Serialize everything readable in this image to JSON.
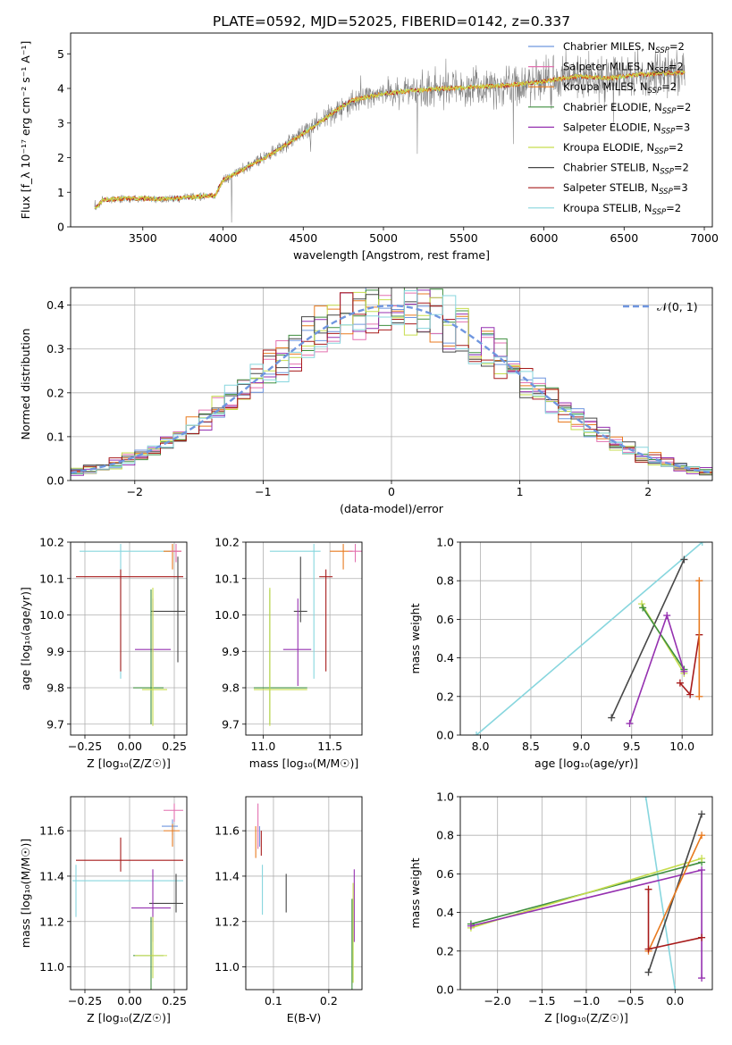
{
  "figure_title": "PLATE=0592, MJD=52025, FIBERID=0142, z=0.337",
  "colors": {
    "Chabrier MILES": "#6f96df",
    "Salpeter MILES": "#e371b0",
    "Kroupa MILES": "#e87a1f",
    "Chabrier ELODIE": "#3f8f3f",
    "Salpeter ELODIE": "#9531b0",
    "Kroupa ELODIE": "#c6dd4e",
    "Chabrier STELIB": "#474747",
    "Salpeter STELIB": "#a71b1b",
    "Kroupa STELIB": "#87d6de",
    "observed_spectrum": "#808080",
    "gaussian": "#6f96df"
  },
  "chart_data": [
    {
      "id": "spectrum",
      "type": "line",
      "xlabel": "wavelength [Angstrom, rest frame]",
      "ylabel": "Flux [f_λ 10⁻¹⁷ erg cm⁻² s⁻¹ A⁻¹]",
      "xlim": [
        3050,
        7050
      ],
      "ylim": [
        0,
        5.6
      ],
      "xticks": [
        3500,
        4000,
        4500,
        5000,
        5500,
        6000,
        6500,
        7000
      ],
      "yticks": [
        0,
        1,
        2,
        3,
        4,
        5
      ],
      "grid": false,
      "legend_position": "top-right",
      "legend": [
        {
          "model": "Chabrier MILES",
          "label": "Chabrier MILES, N",
          "sub": "SSP",
          "suffix": "=2"
        },
        {
          "model": "Salpeter MILES",
          "label": "Salpeter MILES, N",
          "sub": "SSP",
          "suffix": "=2"
        },
        {
          "model": "Kroupa MILES",
          "label": "Kroupa MILES, N",
          "sub": "SSP",
          "suffix": "=2"
        },
        {
          "model": "Chabrier ELODIE",
          "label": "Chabrier ELODIE, N",
          "sub": "SSP",
          "suffix": "=2"
        },
        {
          "model": "Salpeter ELODIE",
          "label": "Salpeter ELODIE, N",
          "sub": "SSP",
          "suffix": "=3"
        },
        {
          "model": "Kroupa ELODIE",
          "label": "Kroupa ELODIE, N",
          "sub": "SSP",
          "suffix": "=2"
        },
        {
          "model": "Chabrier STELIB",
          "label": "Chabrier STELIB, N",
          "sub": "SSP",
          "suffix": "=2"
        },
        {
          "model": "Salpeter STELIB",
          "label": "Salpeter STELIB, N",
          "sub": "SSP",
          "suffix": "=3"
        },
        {
          "model": "Kroupa STELIB",
          "label": "Kroupa STELIB, N",
          "sub": "SSP",
          "suffix": "=2"
        }
      ],
      "continuum": [
        [
          3210,
          0.55
        ],
        [
          3250,
          0.78
        ],
        [
          3400,
          0.82
        ],
        [
          3500,
          0.82
        ],
        [
          3600,
          0.8
        ],
        [
          3700,
          0.82
        ],
        [
          3800,
          0.85
        ],
        [
          3900,
          0.9
        ],
        [
          3950,
          0.9
        ],
        [
          4000,
          1.35
        ],
        [
          4100,
          1.6
        ],
        [
          4200,
          1.85
        ],
        [
          4300,
          2.1
        ],
        [
          4400,
          2.4
        ],
        [
          4500,
          2.7
        ],
        [
          4600,
          3.0
        ],
        [
          4700,
          3.35
        ],
        [
          4800,
          3.65
        ],
        [
          4900,
          3.75
        ],
        [
          5000,
          3.85
        ],
        [
          5200,
          3.95
        ],
        [
          5400,
          4.0
        ],
        [
          5600,
          4.05
        ],
        [
          5800,
          4.1
        ],
        [
          6000,
          4.2
        ],
        [
          6200,
          4.35
        ],
        [
          6400,
          4.3
        ],
        [
          6600,
          4.4
        ],
        [
          6800,
          4.45
        ],
        [
          6880,
          4.45
        ]
      ],
      "data_range": [
        3200,
        6880
      ]
    },
    {
      "id": "residuals",
      "type": "histogram",
      "xlabel": "(data-model)/error",
      "ylabel": "Normed distribution",
      "xlim": [
        -2.5,
        2.5
      ],
      "ylim": [
        0,
        0.44
      ],
      "xticks": [
        -2,
        -1,
        0,
        1,
        2
      ],
      "yticks": [
        0.0,
        0.1,
        0.2,
        0.3,
        0.4
      ],
      "grid": true,
      "legend_position": "top-right",
      "legend": [
        {
          "label": "𝒩(0, 1)",
          "style": "dashed"
        }
      ],
      "bins": 50,
      "gaussian": {
        "mean": 0,
        "sigma": 1
      }
    },
    {
      "id": "age-vs-Z",
      "type": "errorbar",
      "xlabel": "Z [log₁₀(Z/Z☉)]",
      "ylabel": "age  [log₁₀(age/yr)]",
      "xlim": [
        -0.33,
        0.32
      ],
      "ylim": [
        9.67,
        10.2
      ],
      "xticks": [
        -0.25,
        0.0,
        0.25
      ],
      "yticks": [
        9.7,
        9.8,
        9.9,
        10.0,
        10.1,
        10.2
      ],
      "grid": true,
      "points": [
        {
          "model": "Kroupa STELIB",
          "x": -0.05,
          "y": 10.175,
          "xerr": [
            0.23,
            0.32
          ],
          "yerr": [
            0.35,
            0.02
          ]
        },
        {
          "model": "Salpeter STELIB",
          "x": -0.05,
          "y": 10.105,
          "xerr": [
            0.25,
            0.35
          ],
          "yerr": [
            0.26,
            0.02
          ]
        },
        {
          "model": "Kroupa MILES",
          "x": 0.24,
          "y": 10.175,
          "xerr": [
            0.05,
            0.05
          ],
          "yerr": [
            0.05,
            0.02
          ]
        },
        {
          "model": "Salpeter MILES",
          "x": 0.26,
          "y": 10.175,
          "xerr": [
            0.03,
            0.03
          ],
          "yerr": [
            0.03,
            0.02
          ]
        },
        {
          "model": "Chabrier STELIB",
          "x": 0.27,
          "y": 10.01,
          "xerr": [
            0.15,
            0.04
          ],
          "yerr": [
            0.14,
            0.15
          ]
        },
        {
          "model": "Salpeter ELODIE",
          "x": 0.13,
          "y": 9.905,
          "xerr": [
            0.1,
            0.1
          ],
          "yerr": [
            0.1,
            0.14
          ]
        },
        {
          "model": "Chabrier ELODIE",
          "x": 0.12,
          "y": 9.8,
          "xerr": [
            0.1,
            0.07
          ],
          "yerr": [
            0.1,
            0.27
          ]
        },
        {
          "model": "Kroupa ELODIE",
          "x": 0.13,
          "y": 9.795,
          "xerr": [
            0.06,
            0.08
          ],
          "yerr": [
            0.1,
            0.28
          ]
        }
      ]
    },
    {
      "id": "age-vs-mass",
      "type": "errorbar",
      "xlabel": "mass [log₁₀(M/M☉)]",
      "ylabel": "",
      "xlim": [
        10.87,
        11.74
      ],
      "ylim": [
        9.67,
        10.2
      ],
      "xticks": [
        11.0,
        11.5
      ],
      "yticks": [
        9.7,
        9.8,
        9.9,
        10.0,
        10.1,
        10.2
      ],
      "grid": true,
      "points": [
        {
          "model": "Kroupa STELIB",
          "x": 11.38,
          "y": 10.175,
          "xerr": [
            0.33,
            0.05
          ],
          "yerr": [
            0.35,
            0.02
          ]
        },
        {
          "model": "Salpeter STELIB",
          "x": 11.47,
          "y": 10.105,
          "xerr": [
            0.05,
            0.05
          ],
          "yerr": [
            0.26,
            0.02
          ]
        },
        {
          "model": "Kroupa MILES",
          "x": 11.6,
          "y": 10.175,
          "xerr": [
            0.1,
            0.07
          ],
          "yerr": [
            0.05,
            0.02
          ]
        },
        {
          "model": "Salpeter MILES",
          "x": 11.69,
          "y": 10.175,
          "xerr": [
            0.05,
            0.05
          ],
          "yerr": [
            0.03,
            0.02
          ]
        },
        {
          "model": "Chabrier STELIB",
          "x": 11.28,
          "y": 10.01,
          "xerr": [
            0.05,
            0.05
          ],
          "yerr": [
            0.03,
            0.15
          ]
        },
        {
          "model": "Salpeter ELODIE",
          "x": 11.26,
          "y": 9.905,
          "xerr": [
            0.11,
            0.1
          ],
          "yerr": [
            0.1,
            0.14
          ]
        },
        {
          "model": "Chabrier ELODIE",
          "x": 11.05,
          "y": 9.8,
          "xerr": [
            0.12,
            0.28
          ],
          "yerr": [
            0.1,
            0.27
          ]
        },
        {
          "model": "Kroupa ELODIE",
          "x": 11.05,
          "y": 9.795,
          "xerr": [
            0.12,
            0.28
          ],
          "yerr": [
            0.1,
            0.28
          ]
        }
      ]
    },
    {
      "id": "mass-weight-vs-age",
      "type": "line",
      "xlabel": "age  [log₁₀(age/yr)]",
      "ylabel": "mass weight",
      "xlim": [
        7.8,
        10.3
      ],
      "ylim": [
        0,
        1.0
      ],
      "xticks": [
        8.0,
        8.5,
        9.0,
        9.5,
        10.0
      ],
      "yticks": [
        0.0,
        0.2,
        0.4,
        0.6,
        0.8,
        1.0
      ],
      "grid": true,
      "series": [
        {
          "model": "Kroupa STELIB",
          "x": [
            7.96,
            10.2
          ],
          "y": [
            0.0,
            1.0
          ]
        },
        {
          "model": "Chabrier STELIB",
          "x": [
            9.3,
            10.02
          ],
          "y": [
            0.09,
            0.91
          ]
        },
        {
          "model": "Kroupa ELODIE",
          "x": [
            9.6,
            10.02
          ],
          "y": [
            0.68,
            0.32
          ]
        },
        {
          "model": "Chabrier ELODIE",
          "x": [
            9.61,
            10.02
          ],
          "y": [
            0.66,
            0.34
          ]
        },
        {
          "model": "Salpeter ELODIE",
          "x": [
            9.48,
            9.85,
            10.02
          ],
          "y": [
            0.06,
            0.62,
            0.33
          ]
        },
        {
          "model": "Salpeter STELIB",
          "x": [
            9.98,
            10.08,
            10.17
          ],
          "y": [
            0.27,
            0.21,
            0.52
          ]
        },
        {
          "model": "Kroupa MILES",
          "x": [
            10.17,
            10.17
          ],
          "y": [
            0.2,
            0.8
          ]
        }
      ]
    },
    {
      "id": "mass-vs-Z",
      "type": "errorbar",
      "xlabel": "Z [log₁₀(Z/Z☉)]",
      "ylabel": "mass [log₁₀(M/M☉)]",
      "xlim": [
        -0.33,
        0.32
      ],
      "ylim": [
        10.9,
        11.75
      ],
      "xticks": [
        -0.25,
        0.0,
        0.25
      ],
      "yticks": [
        11.0,
        11.2,
        11.4,
        11.6
      ],
      "grid": true,
      "points": [
        {
          "model": "Salpeter MILES",
          "x": 0.25,
          "y": 11.69,
          "xerr": [
            0.06,
            0.05
          ],
          "yerr": [
            0.05,
            0.03
          ]
        },
        {
          "model": "Chabrier MILES",
          "x": 0.24,
          "y": 11.62,
          "xerr": [
            0.06,
            0.03
          ],
          "yerr": [
            0.04,
            0.03
          ]
        },
        {
          "model": "Kroupa MILES",
          "x": 0.24,
          "y": 11.6,
          "xerr": [
            0.05,
            0.04
          ],
          "yerr": [
            0.07,
            0.03
          ]
        },
        {
          "model": "Salpeter STELIB",
          "x": -0.05,
          "y": 11.47,
          "xerr": [
            0.25,
            0.35
          ],
          "yerr": [
            0.05,
            0.1
          ]
        },
        {
          "model": "Kroupa STELIB",
          "x": -0.3,
          "y": 11.38,
          "xerr": [
            0.02,
            0.6
          ],
          "yerr": [
            0.16,
            0.07
          ]
        },
        {
          "model": "Chabrier STELIB",
          "x": 0.26,
          "y": 11.28,
          "xerr": [
            0.15,
            0.04
          ],
          "yerr": [
            0.04,
            0.13
          ]
        },
        {
          "model": "Salpeter ELODIE",
          "x": 0.13,
          "y": 11.26,
          "xerr": [
            0.12,
            0.1
          ],
          "yerr": [
            0.15,
            0.17
          ]
        },
        {
          "model": "Chabrier ELODIE",
          "x": 0.12,
          "y": 11.05,
          "xerr": [
            0.1,
            0.07
          ],
          "yerr": [
            0.15,
            0.17
          ]
        },
        {
          "model": "Kroupa ELODIE",
          "x": 0.13,
          "y": 11.05,
          "xerr": [
            0.1,
            0.08
          ],
          "yerr": [
            0.1,
            0.17
          ]
        }
      ]
    },
    {
      "id": "mass-vs-ebv",
      "type": "errorbar",
      "xlabel": "E(B-V)",
      "ylabel": "",
      "xlim": [
        0.05,
        0.26
      ],
      "ylim": [
        10.9,
        11.75
      ],
      "xticks": [
        0.1,
        0.2
      ],
      "yticks": [
        11.0,
        11.2,
        11.4,
        11.6
      ],
      "grid": true,
      "points": [
        {
          "model": "Salpeter MILES",
          "x": 0.072,
          "y": 11.62,
          "xerr": [
            0,
            0
          ],
          "yerr": [
            0.1,
            0.1
          ]
        },
        {
          "model": "Kroupa MILES",
          "x": 0.068,
          "y": 11.56,
          "xerr": [
            0,
            0
          ],
          "yerr": [
            0.08,
            0.06
          ]
        },
        {
          "model": "Chabrier MILES",
          "x": 0.075,
          "y": 11.58,
          "xerr": [
            0,
            0
          ],
          "yerr": [
            0.05,
            0.04
          ]
        },
        {
          "model": "Salpeter STELIB",
          "x": 0.078,
          "y": 11.54,
          "xerr": [
            0,
            0
          ],
          "yerr": [
            0.05,
            0.06
          ]
        },
        {
          "model": "Kroupa STELIB",
          "x": 0.08,
          "y": 11.34,
          "xerr": [
            0,
            0
          ],
          "yerr": [
            0.11,
            0.11
          ]
        },
        {
          "model": "Chabrier STELIB",
          "x": 0.123,
          "y": 11.32,
          "xerr": [
            0,
            0
          ],
          "yerr": [
            0.08,
            0.09
          ]
        },
        {
          "model": "Salpeter ELODIE",
          "x": 0.246,
          "y": 11.27,
          "xerr": [
            0,
            0
          ],
          "yerr": [
            0.16,
            0.16
          ]
        },
        {
          "model": "Chabrier ELODIE",
          "x": 0.242,
          "y": 11.1,
          "xerr": [
            0,
            0
          ],
          "yerr": [
            0.2,
            0.2
          ]
        },
        {
          "model": "Kroupa ELODIE",
          "x": 0.244,
          "y": 11.15,
          "xerr": [
            0,
            0
          ],
          "yerr": [
            0.22,
            0.22
          ]
        }
      ]
    },
    {
      "id": "mass-weight-vs-Z",
      "type": "line",
      "xlabel": "Z [log₁₀(Z/Z☉)]",
      "ylabel": "mass weight",
      "xlim": [
        -2.42,
        0.42
      ],
      "ylim": [
        0,
        1.0
      ],
      "xticks": [
        -2.0,
        -1.5,
        -1.0,
        -0.5,
        0.0
      ],
      "yticks": [
        0.0,
        0.2,
        0.4,
        0.6,
        0.8,
        1.0
      ],
      "grid": true,
      "series": [
        {
          "model": "Kroupa STELIB",
          "x": [
            -0.33,
            0.0
          ],
          "y": [
            1.0,
            0.0
          ]
        },
        {
          "model": "Chabrier ELODIE",
          "x": [
            -2.3,
            0.3
          ],
          "y": [
            0.34,
            0.66
          ]
        },
        {
          "model": "Kroupa ELODIE",
          "x": [
            -2.3,
            0.3
          ],
          "y": [
            0.32,
            0.68
          ]
        },
        {
          "model": "Salpeter ELODIE",
          "x": [
            -2.3,
            0.3,
            0.3
          ],
          "y": [
            0.33,
            0.62,
            0.06
          ]
        },
        {
          "model": "Chabrier STELIB",
          "x": [
            -0.3,
            0.3
          ],
          "y": [
            0.09,
            0.91
          ]
        },
        {
          "model": "Kroupa MILES",
          "x": [
            -0.3,
            0.3
          ],
          "y": [
            0.2,
            0.8
          ]
        },
        {
          "model": "Salpeter STELIB",
          "x": [
            -0.3,
            -0.3,
            0.3
          ],
          "y": [
            0.52,
            0.21,
            0.27
          ]
        }
      ]
    }
  ]
}
